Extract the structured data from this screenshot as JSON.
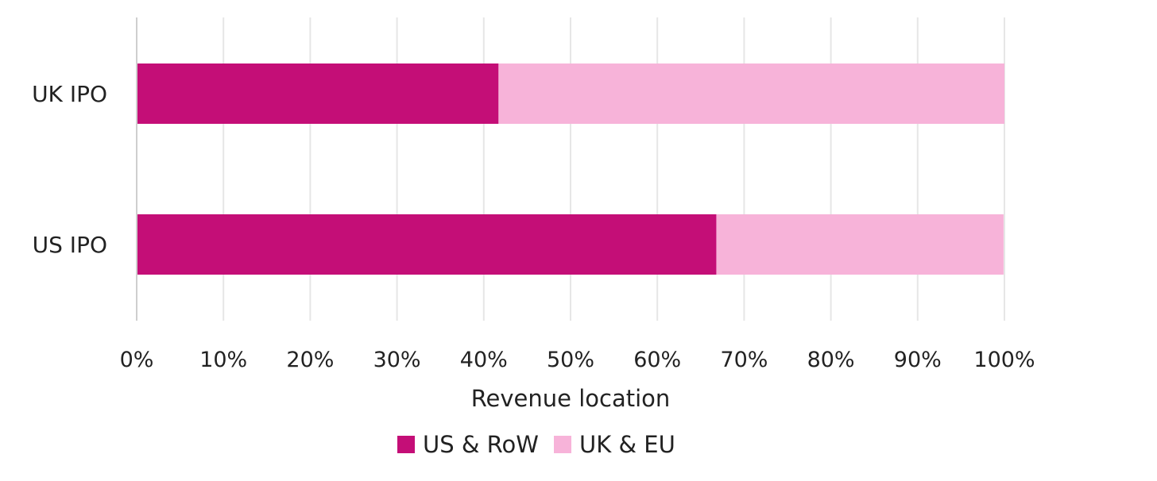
{
  "chart_data": {
    "type": "bar",
    "orientation": "horizontal",
    "stacked": true,
    "categories": [
      "UK IPO",
      "US IPO"
    ],
    "series": [
      {
        "name": "US & RoW",
        "values": [
          41.7,
          66.8
        ],
        "color": "#c40e77"
      },
      {
        "name": "UK & EU",
        "values": [
          58.3,
          33.1
        ],
        "color": "#f7b3d9"
      }
    ],
    "xlabel": "Revenue location",
    "ylabel": "",
    "xlim": [
      0,
      100
    ],
    "xticks": [
      "0%",
      "10%",
      "20%",
      "30%",
      "40%",
      "50%",
      "60%",
      "70%",
      "80%",
      "90%",
      "100%"
    ],
    "grid": "vertical",
    "legend_position": "bottom-center"
  }
}
